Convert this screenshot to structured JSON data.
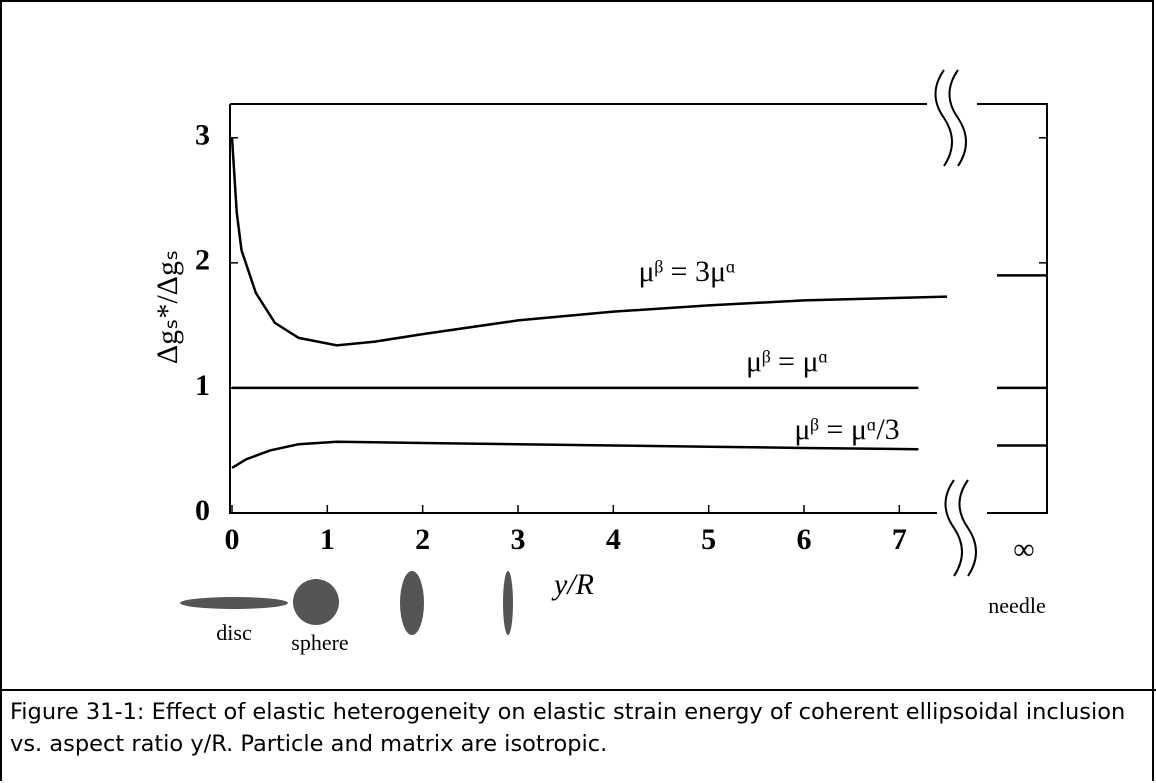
{
  "chart_data": {
    "type": "line",
    "y_label": "Δgₛ*/Δgₛ",
    "x_label": "y/R",
    "xlim": [
      0,
      7.5
    ],
    "ylim": [
      0,
      3.27
    ],
    "xticks": [
      0,
      1,
      2,
      3,
      4,
      5,
      6,
      7
    ],
    "yticks": [
      0,
      1,
      2,
      3
    ],
    "x_infinity_label": "∞",
    "needle_label": "needle",
    "shape_labels": [
      "disc",
      "sphere"
    ],
    "series": [
      {
        "name": "μᵝ = 3μᵅ",
        "color": "#000000",
        "x": [
          0,
          0.05,
          0.1,
          0.25,
          0.45,
          0.7,
          1.1,
          1.5,
          2,
          3,
          4,
          5,
          6,
          7,
          7.5
        ],
        "values": [
          3.0,
          2.4,
          2.1,
          1.76,
          1.52,
          1.4,
          1.34,
          1.37,
          1.43,
          1.54,
          1.61,
          1.66,
          1.7,
          1.72,
          1.73
        ],
        "needle_value": 1.9
      },
      {
        "name": "μᵝ = μᵅ",
        "color": "#000000",
        "x": [
          0,
          7.2
        ],
        "values": [
          1,
          1
        ],
        "needle_value": 1
      },
      {
        "name": "μᵝ = μᵅ/3",
        "color": "#000000",
        "x": [
          0,
          0.15,
          0.4,
          0.7,
          1.1,
          2,
          3,
          4,
          5,
          6,
          7.2
        ],
        "values": [
          0.36,
          0.43,
          0.5,
          0.55,
          0.57,
          0.56,
          0.55,
          0.54,
          0.53,
          0.52,
          0.51
        ],
        "needle_value": 0.54
      }
    ]
  },
  "caption": "Figure 31-1: Effect of elastic heterogeneity on elastic strain energy of coherent ellipsoidal inclusion vs. aspect ratio y/R. Particle and matrix are isotropic."
}
